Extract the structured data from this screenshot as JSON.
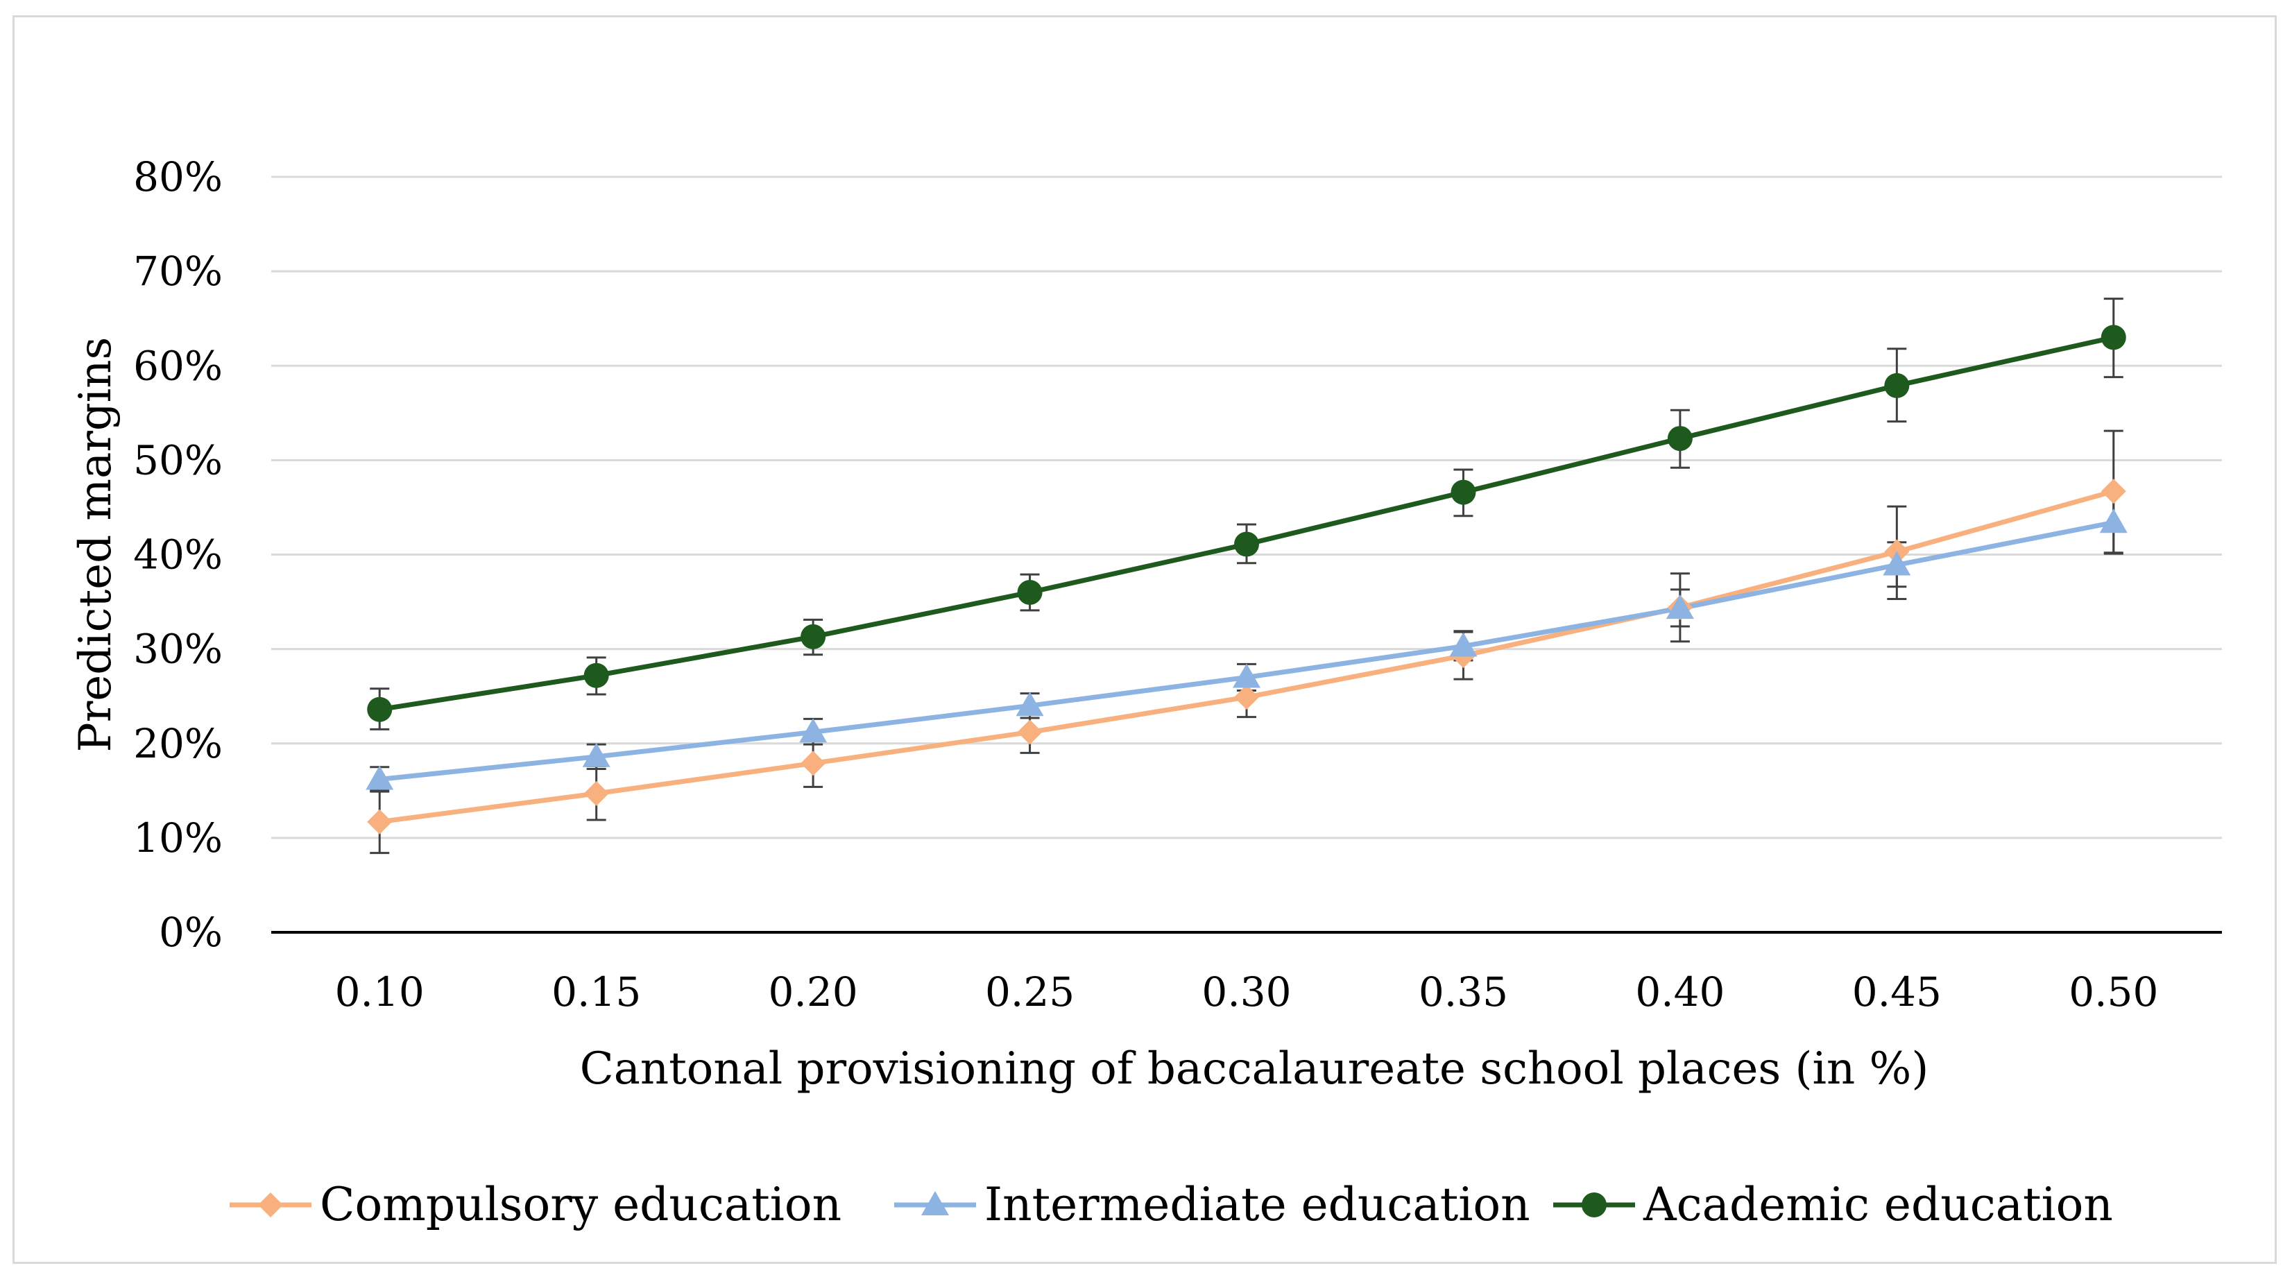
{
  "chart_data": {
    "type": "line",
    "title": "",
    "xlabel": "Cantonal provisioning of baccalaureate school places (in %)",
    "ylabel": "Predicted margins",
    "categories": [
      "0.10",
      "0.15",
      "0.20",
      "0.25",
      "0.30",
      "0.35",
      "0.40",
      "0.45",
      "0.50"
    ],
    "y_ticks": [
      "0%",
      "10%",
      "20%",
      "30%",
      "40%",
      "50%",
      "60%",
      "70%",
      "80%"
    ],
    "ylim": [
      0,
      80
    ],
    "grid": true,
    "legend_position": "bottom",
    "series": [
      {
        "name": "Compulsory education",
        "color": "#f8b07f",
        "marker": "diamond",
        "values": [
          11.7,
          14.7,
          17.9,
          21.2,
          24.9,
          29.3,
          34.4,
          40.3,
          46.7
        ],
        "ci_low": [
          8.4,
          11.9,
          15.4,
          19.0,
          22.8,
          26.8,
          30.8,
          35.3,
          40.2
        ],
        "ci_high": [
          15.0,
          17.6,
          20.3,
          23.4,
          27.0,
          31.8,
          38.0,
          45.1,
          53.1
        ]
      },
      {
        "name": "Intermediate education",
        "color": "#8db3e2",
        "marker": "triangle",
        "values": [
          16.2,
          18.6,
          21.2,
          24.0,
          27.0,
          30.3,
          34.3,
          38.9,
          43.4
        ],
        "ci_low": [
          14.9,
          17.3,
          19.9,
          22.7,
          25.6,
          28.8,
          32.4,
          36.6,
          40.1
        ],
        "ci_high": [
          17.5,
          19.9,
          22.6,
          25.3,
          28.4,
          31.9,
          36.3,
          41.3,
          46.7
        ]
      },
      {
        "name": "Academic education",
        "color": "#1e5a1e",
        "marker": "circle",
        "values": [
          23.6,
          27.2,
          31.3,
          36.0,
          41.1,
          46.6,
          52.3,
          57.9,
          63.0
        ],
        "ci_low": [
          21.5,
          25.2,
          29.4,
          34.1,
          39.1,
          44.1,
          49.2,
          54.1,
          58.8
        ],
        "ci_high": [
          25.8,
          29.1,
          33.1,
          37.9,
          43.2,
          49.0,
          55.3,
          61.8,
          67.1
        ]
      }
    ]
  }
}
